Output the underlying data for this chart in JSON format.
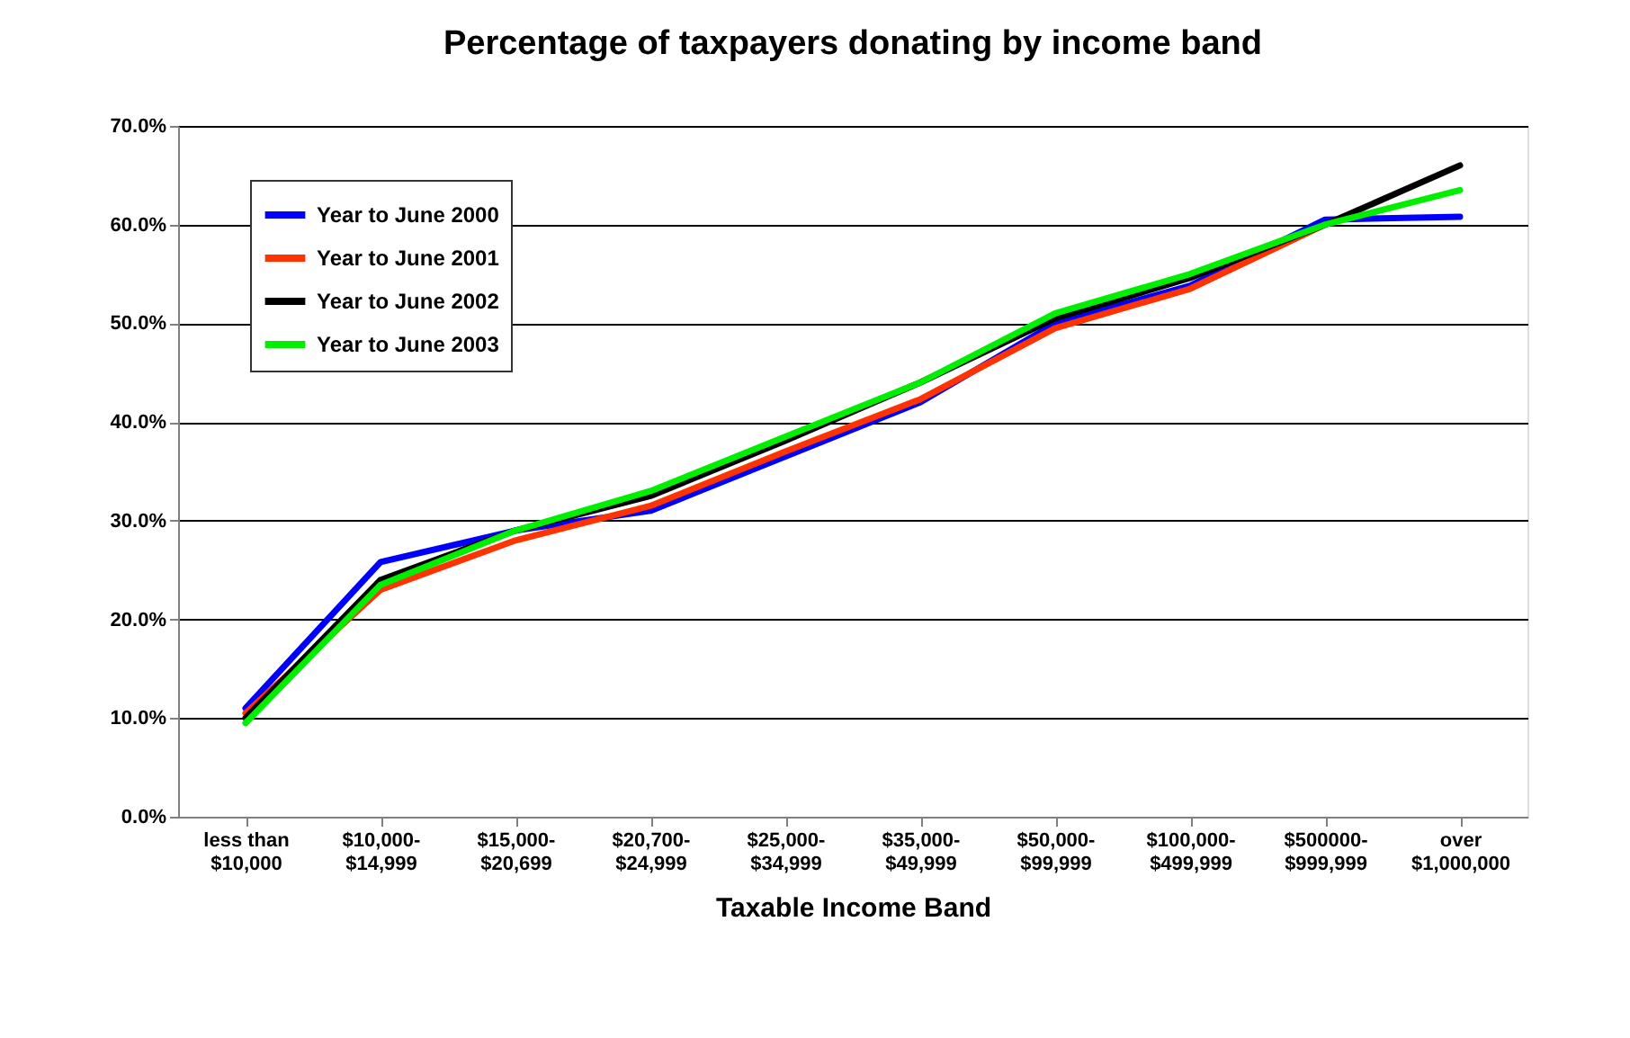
{
  "chart_data": {
    "type": "line",
    "title": "Percentage of taxpayers donating by income band",
    "xlabel": "Taxable Income Band",
    "categories": [
      "less than\n$10,000",
      "$10,000-\n$14,999",
      "$15,000-\n$20,699",
      "$20,700-\n$24,999",
      "$25,000-\n$34,999",
      "$35,000-\n$49,999",
      "$50,000-\n$99,999",
      "$100,000-\n$499,999",
      "$500000-\n$999,999",
      "over\n$1,000,000"
    ],
    "series": [
      {
        "name": "Year to June 2000",
        "color": "#0000ff",
        "values": [
          11,
          25.8,
          29,
          31,
          36.5,
          42,
          50,
          53.8,
          60.5,
          60.8
        ]
      },
      {
        "name": "Year to June 2001",
        "color": "#ff3300",
        "values": [
          10.5,
          23,
          28,
          31.5,
          37,
          42.3,
          49.5,
          53.5,
          60,
          null
        ]
      },
      {
        "name": "Year to June 2002",
        "color": "#000000",
        "values": [
          10,
          24,
          29,
          32.5,
          38.1,
          44,
          50.5,
          54.6,
          60,
          66
        ]
      },
      {
        "name": "Year to June 2003",
        "color": "#00ee00",
        "values": [
          9.5,
          23.5,
          29,
          33,
          38.5,
          44,
          51,
          55,
          60,
          63.5
        ]
      }
    ],
    "ylim": [
      0,
      70
    ],
    "yticks": [
      {
        "value": 0,
        "label": "0.0%"
      },
      {
        "value": 10,
        "label": "10.0%"
      },
      {
        "value": 20,
        "label": "20.0%"
      },
      {
        "value": 30,
        "label": "30.0%"
      },
      {
        "value": 40,
        "label": "40.0%"
      },
      {
        "value": 50,
        "label": "50.0%"
      },
      {
        "value": 60,
        "label": "60.0%"
      },
      {
        "value": 70,
        "label": "70.0%"
      }
    ],
    "grid": "y",
    "legend": "top left",
    "line_style": "solid"
  }
}
